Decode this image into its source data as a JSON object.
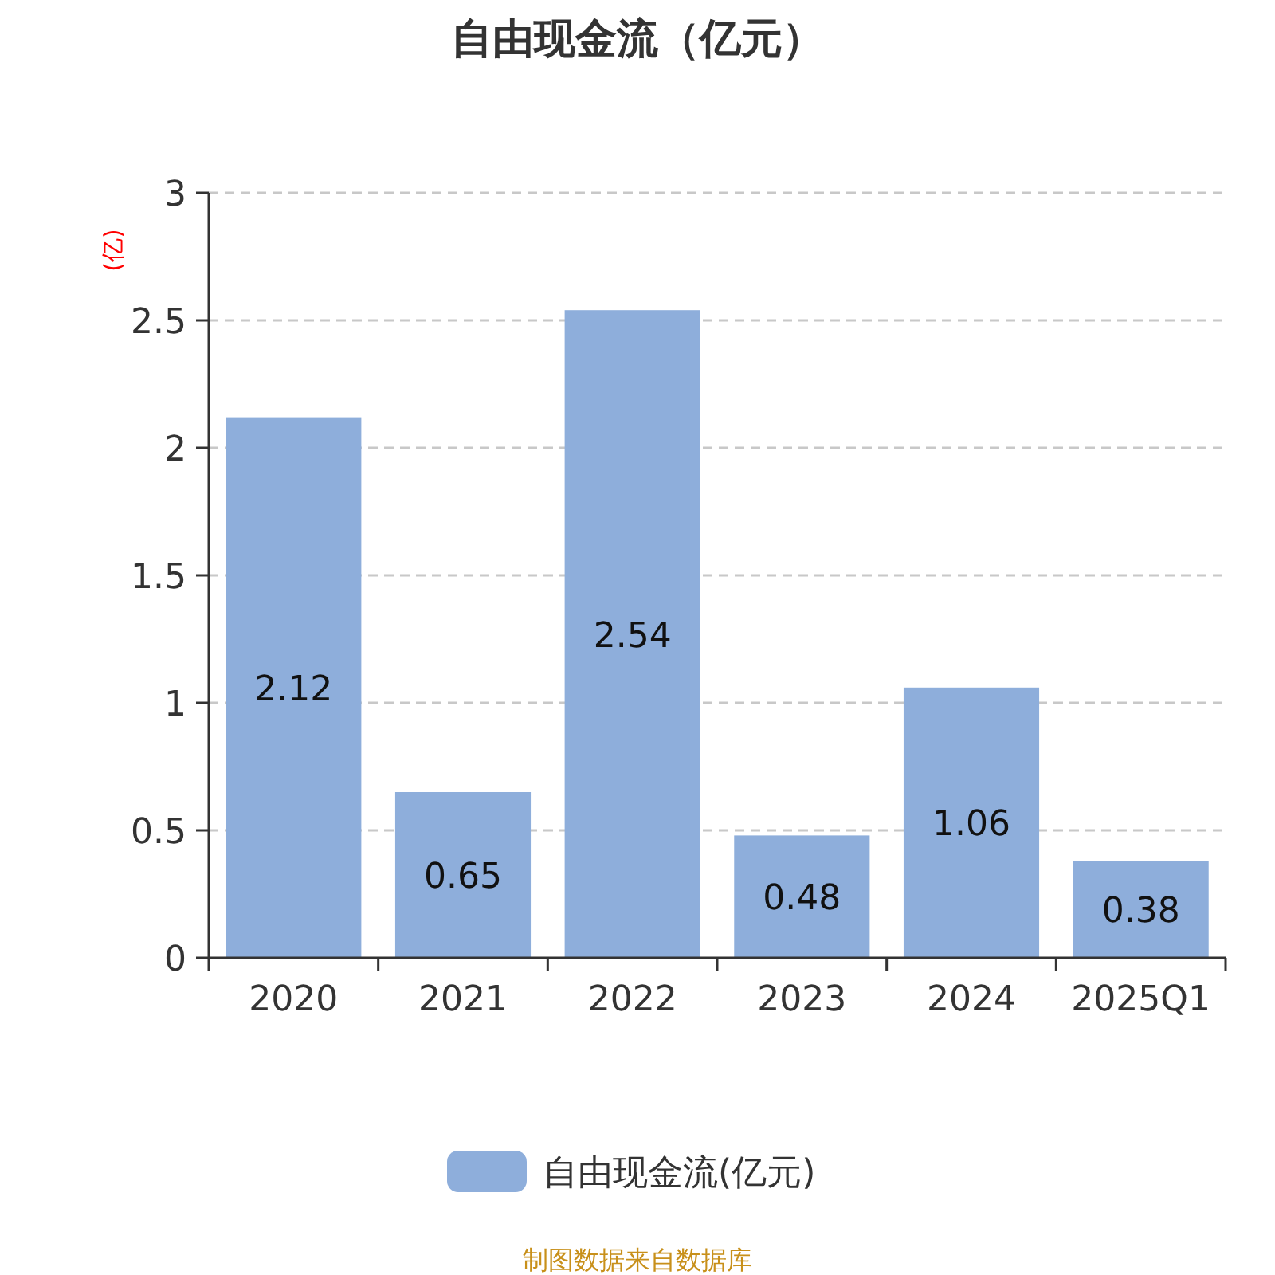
{
  "chart_data": {
    "type": "bar",
    "title": "自由现金流（亿元）",
    "ylabel": "(亿)",
    "categories": [
      "2020",
      "2021",
      "2022",
      "2023",
      "2024",
      "2025Q1"
    ],
    "series": [
      {
        "name": "自由现金流(亿元)",
        "color": "#8eaedb",
        "values": [
          2.12,
          0.65,
          2.54,
          0.48,
          1.06,
          0.38
        ]
      }
    ],
    "ylim": [
      0,
      3
    ],
    "yticks": [
      0,
      0.5,
      1,
      1.5,
      2,
      2.5,
      3
    ],
    "grid": "y",
    "legend": "bottom",
    "data_labels": true,
    "annotations": [
      "制图数据来自数据库"
    ]
  }
}
